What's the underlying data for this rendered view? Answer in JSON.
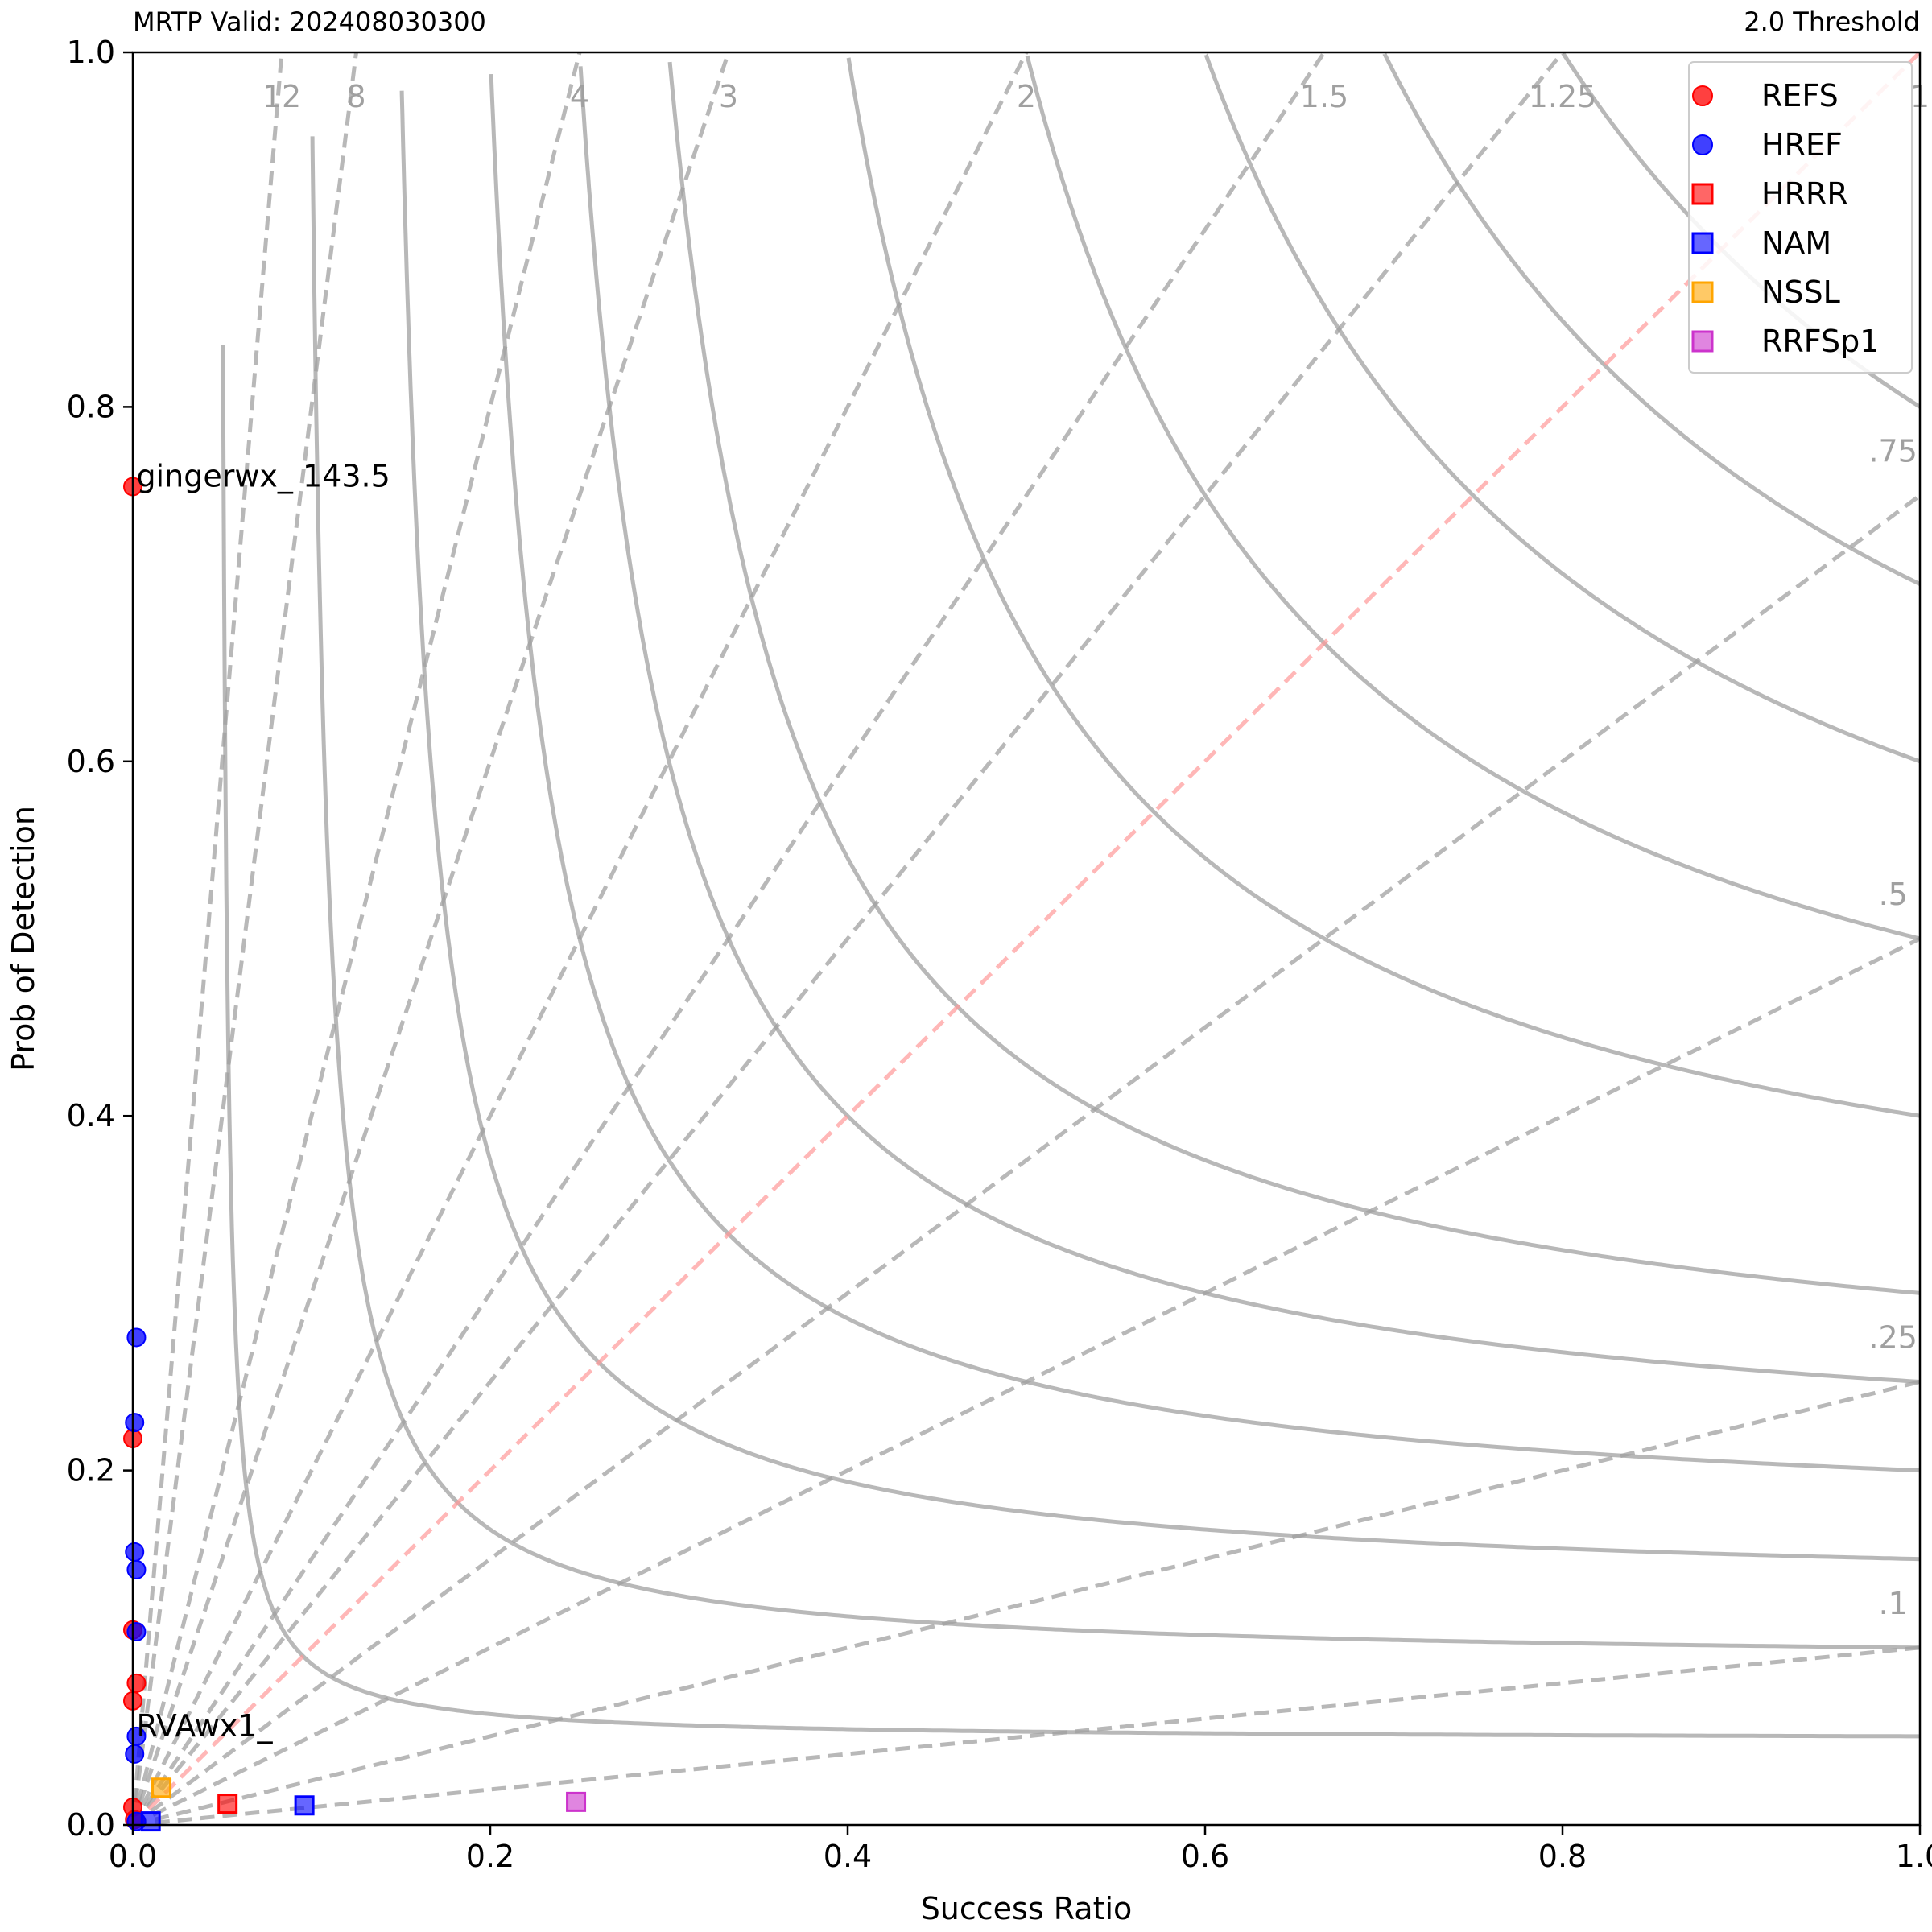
{
  "chart_data": {
    "type": "scatter",
    "title_left": "MRTP Valid: 202408030300",
    "title_right": "2.0 Threshold",
    "xlabel": "Success Ratio",
    "ylabel": "Prob of Detection",
    "xlim": [
      0,
      1
    ],
    "ylim": [
      0,
      1
    ],
    "x_ticks": [
      {
        "value": 0.0,
        "label": "0.0"
      },
      {
        "value": 0.2,
        "label": "0.2"
      },
      {
        "value": 0.4,
        "label": "0.4"
      },
      {
        "value": 0.6,
        "label": "0.6"
      },
      {
        "value": 0.8,
        "label": "0.8"
      },
      {
        "value": 1.0,
        "label": "1.0"
      }
    ],
    "y_ticks": [
      {
        "value": 0.0,
        "label": "0.0"
      },
      {
        "value": 0.2,
        "label": "0.2"
      },
      {
        "value": 0.4,
        "label": "0.4"
      },
      {
        "value": 0.6,
        "label": "0.6"
      },
      {
        "value": 0.8,
        "label": "0.8"
      },
      {
        "value": 1.0,
        "label": "1.0"
      }
    ],
    "bias_lines": [
      {
        "bias": 12,
        "label": "12"
      },
      {
        "bias": 8,
        "label": "8"
      },
      {
        "bias": 4,
        "label": "4"
      },
      {
        "bias": 3,
        "label": "3"
      },
      {
        "bias": 2,
        "label": "2"
      },
      {
        "bias": 1.5,
        "label": "1.5"
      },
      {
        "bias": 1.25,
        "label": "1.25"
      },
      {
        "bias": 1,
        "label": "1"
      },
      {
        "bias": 0.75,
        "label": ".75"
      },
      {
        "bias": 0.5,
        "label": ".5"
      },
      {
        "bias": 0.25,
        "label": ".25"
      },
      {
        "bias": 0.1,
        "label": ".1"
      }
    ],
    "csi_contours": [
      0.05,
      0.1,
      0.15,
      0.2,
      0.25,
      0.3,
      0.4,
      0.5,
      0.6,
      0.7,
      0.8
    ],
    "series": [
      {
        "name": "REFS",
        "marker": "circle",
        "color": "#ff0000",
        "points": [
          [
            0.0,
            0.755
          ],
          [
            0.0,
            0.218
          ],
          [
            0.0,
            0.11
          ],
          [
            0.002,
            0.08
          ],
          [
            0.0,
            0.07
          ],
          [
            0.0,
            0.01
          ],
          [
            0.001,
            0.003
          ]
        ]
      },
      {
        "name": "HREF",
        "marker": "circle",
        "color": "#0000ff",
        "points": [
          [
            0.002,
            0.275
          ],
          [
            0.001,
            0.227
          ],
          [
            0.001,
            0.154
          ],
          [
            0.002,
            0.144
          ],
          [
            0.002,
            0.109
          ],
          [
            0.002,
            0.05
          ],
          [
            0.001,
            0.04
          ],
          [
            0.002,
            0.002
          ]
        ]
      },
      {
        "name": "HRRR",
        "marker": "square",
        "color": "#ff0000",
        "points": [
          [
            0.053,
            0.012
          ]
        ]
      },
      {
        "name": "NAM",
        "marker": "square",
        "color": "#0000ff",
        "points": [
          [
            0.096,
            0.011
          ],
          [
            0.01,
            0.002
          ]
        ]
      },
      {
        "name": "NSSL",
        "marker": "square",
        "color": "#ffa500",
        "points": [
          [
            0.016,
            0.021
          ]
        ]
      },
      {
        "name": "RRFSp1",
        "marker": "square",
        "color": "#cc33cc",
        "points": [
          [
            0.248,
            0.013
          ]
        ]
      }
    ],
    "annotations": [
      {
        "text": "gingerwx_ 143.5",
        "x": 0.002,
        "y": 0.755
      },
      {
        "text": "RVAwx1_",
        "x": 0.002,
        "y": 0.05
      }
    ],
    "legend_position": "top-right",
    "grid": false
  }
}
